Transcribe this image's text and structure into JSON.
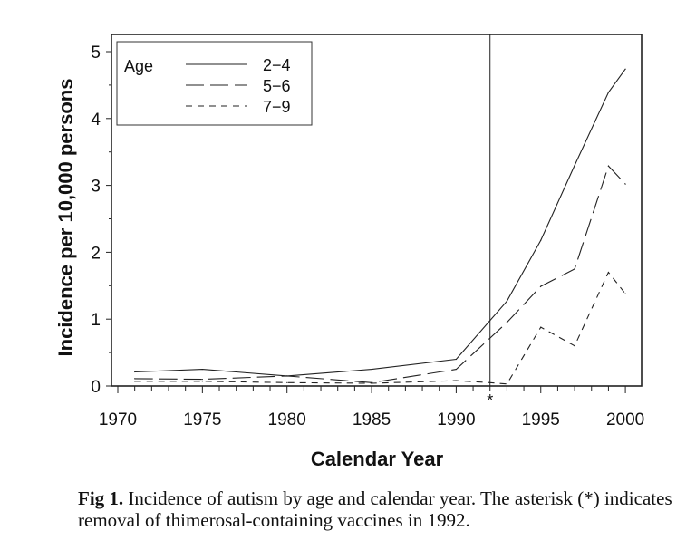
{
  "chart_data": {
    "type": "line",
    "title": "",
    "xlabel": "Calendar Year",
    "ylabel": "Incidence per 10,000 persons",
    "xlim": [
      1970,
      2001
    ],
    "ylim": [
      0,
      5.2
    ],
    "x_ticks": [
      1970,
      1975,
      1980,
      1985,
      1990,
      1995,
      2000
    ],
    "x_tick_labels": [
      "1970",
      "1975",
      "1980",
      "1985",
      "1990",
      "1995",
      "2000"
    ],
    "y_ticks": [
      0,
      1,
      2,
      3,
      4,
      5
    ],
    "y_tick_labels": [
      "0",
      "1",
      "2",
      "3",
      "4",
      "5"
    ],
    "grid": false,
    "legend": {
      "title": "Age",
      "position": "top-left"
    },
    "series": [
      {
        "name": "2−4",
        "style": "solid",
        "x": [
          1971,
          1975,
          1980,
          1985,
          1990,
          1993,
          1995,
          1997,
          1999,
          2000
        ],
        "values": [
          0.21,
          0.25,
          0.15,
          0.25,
          0.4,
          1.27,
          2.18,
          3.3,
          4.39,
          4.74
        ]
      },
      {
        "name": "5−6",
        "style": "long-dash",
        "x": [
          1971,
          1975,
          1980,
          1985,
          1990,
          1993,
          1995,
          1997,
          1999,
          2000
        ],
        "values": [
          0.11,
          0.1,
          0.15,
          0.05,
          0.25,
          0.95,
          1.49,
          1.75,
          3.29,
          3.02
        ]
      },
      {
        "name": "7−9",
        "style": "short-dash",
        "x": [
          1971,
          1975,
          1980,
          1985,
          1990,
          1992,
          1993,
          1995,
          1997,
          1999,
          2000
        ],
        "values": [
          0.07,
          0.07,
          0.05,
          0.04,
          0.08,
          0.05,
          0.03,
          0.88,
          0.6,
          1.7,
          1.38
        ]
      }
    ],
    "annotations": [
      {
        "type": "vertical-line",
        "x": 1992,
        "label": "*"
      }
    ]
  },
  "caption": {
    "fig_label": "Fig 1.",
    "text": "Incidence of autism by age and calendar year. The asterisk (*) indicates removal of thimerosal-containing vaccines in 1992."
  }
}
